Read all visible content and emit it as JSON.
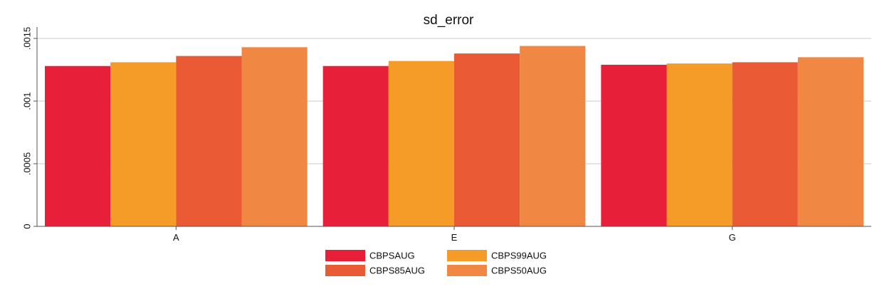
{
  "chart_data": {
    "type": "bar",
    "title": "sd_error",
    "xlabel": "",
    "ylabel": "",
    "categories": [
      "A",
      "E",
      "G"
    ],
    "series": [
      {
        "name": "CBPSAUG",
        "values": [
          0.00128,
          0.00128,
          0.00129
        ],
        "color": "#e81f38"
      },
      {
        "name": "CBPS99AUG",
        "values": [
          0.00131,
          0.00132,
          0.0013
        ],
        "color": "#f59b28"
      },
      {
        "name": "CBPS85AUG",
        "values": [
          0.00136,
          0.00138,
          0.00131
        ],
        "color": "#ea5a34"
      },
      {
        "name": "CBPS50AUG",
        "values": [
          0.00143,
          0.00144,
          0.00135
        ],
        "color": "#f08743"
      }
    ],
    "ylim": [
      0,
      0.0015
    ],
    "y_ticks": [
      0,
      0.0005,
      0.001,
      0.0015
    ],
    "y_tick_labels": [
      "0",
      ".0005",
      ".001",
      ".0015"
    ],
    "grid": true,
    "legend_position": "bottom",
    "legend_columns": 2,
    "colors": {
      "grid": "#c9c9c9",
      "axis": "#555555",
      "background": "#ffffff"
    }
  }
}
